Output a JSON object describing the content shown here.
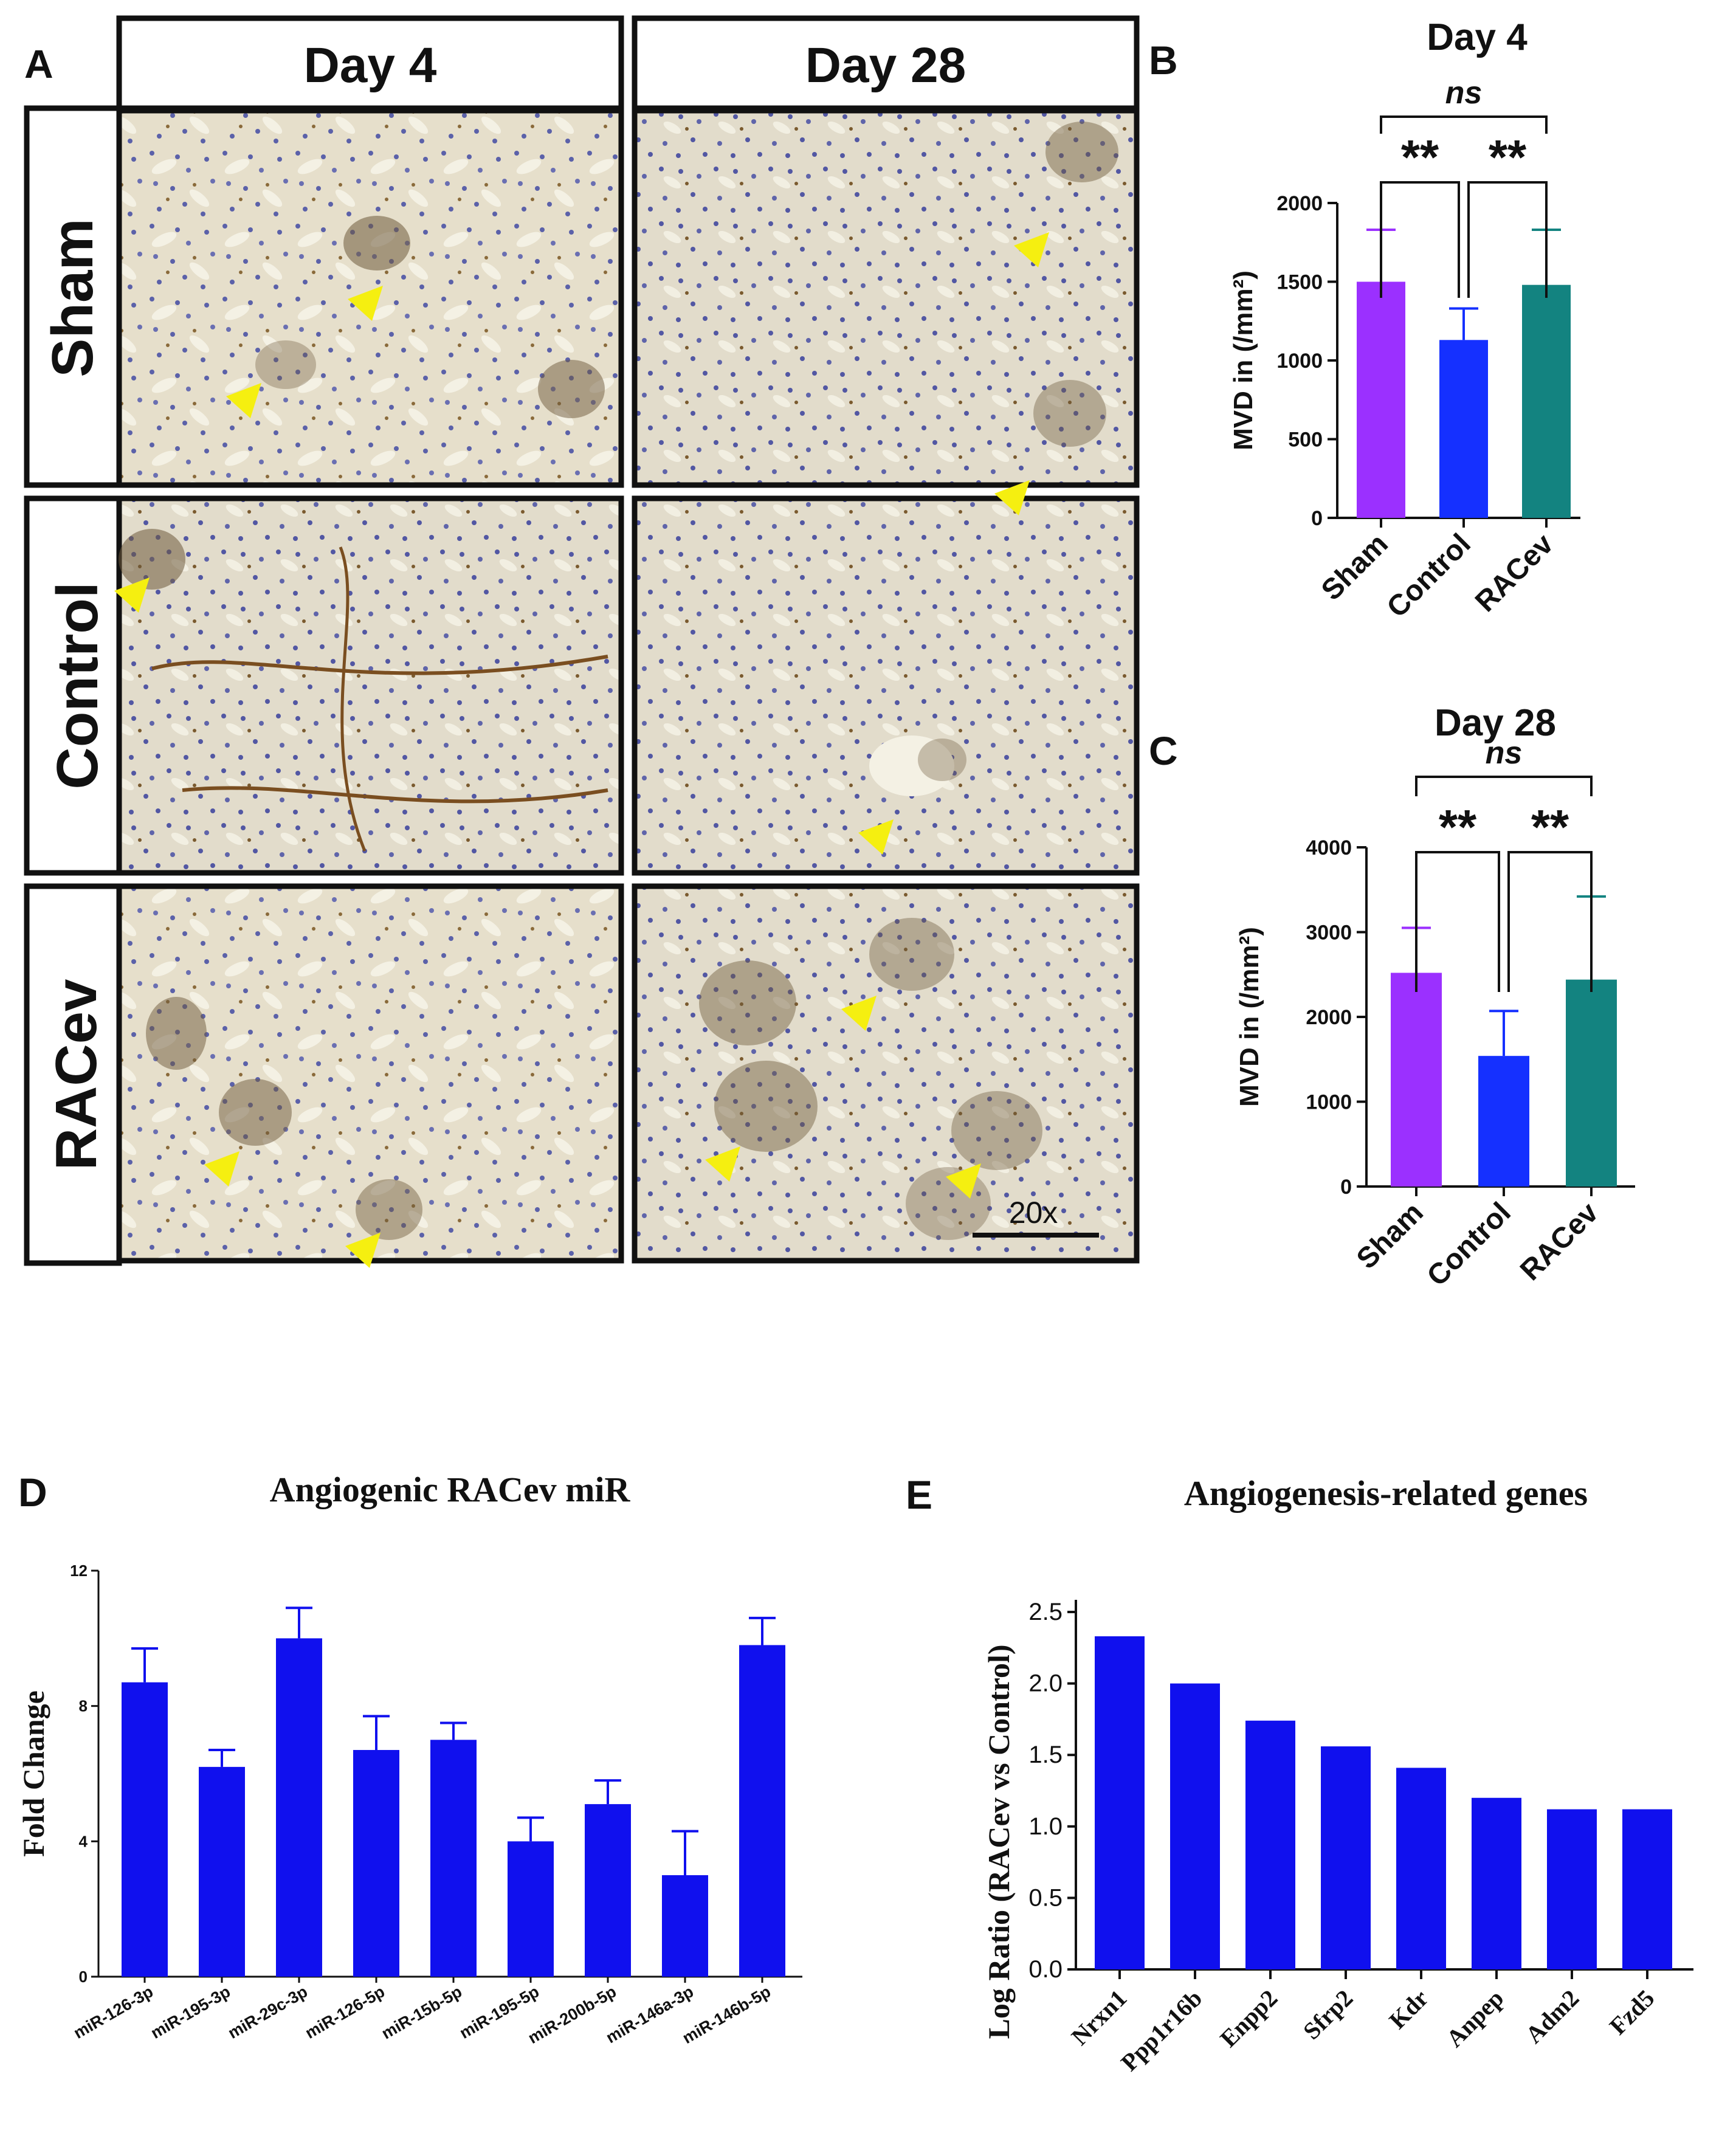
{
  "panel_a": {
    "letter": "A",
    "col_headers": [
      "Day 4",
      "Day 28"
    ],
    "row_labels": [
      "Sham",
      "Control",
      "RACev"
    ],
    "scale_label": "20x",
    "tissue_color": "#e9e2cf",
    "nuclei_color": "#5a5fa8",
    "arrow_color": "#f5ef10"
  },
  "chart_data": [
    {
      "id": "B",
      "letter": "B",
      "type": "bar",
      "title": "Day 4",
      "ylabel": "MVD in (/mm²)",
      "ylim": [
        0,
        2000
      ],
      "yticks": [
        0,
        500,
        1000,
        1500,
        2000
      ],
      "categories": [
        "Sham",
        "Control",
        "RACev"
      ],
      "values": [
        1500,
        1130,
        1480
      ],
      "errors": [
        330,
        200,
        350
      ],
      "colors": [
        "#9b30ff",
        "#1530ff",
        "#138380"
      ],
      "significance": [
        {
          "from": 0,
          "to": 2,
          "label": "ns"
        },
        {
          "from": 0,
          "to": 1,
          "label": "**"
        },
        {
          "from": 1,
          "to": 2,
          "label": "**"
        }
      ]
    },
    {
      "id": "C",
      "letter": "C",
      "type": "bar",
      "title": "Day 28",
      "ylabel": "MVD in (/mm²)",
      "ylim": [
        0,
        4000
      ],
      "yticks": [
        0,
        1000,
        2000,
        3000,
        4000
      ],
      "categories": [
        "Sham",
        "Control",
        "RACev"
      ],
      "values": [
        2520,
        1540,
        2440
      ],
      "errors": [
        530,
        530,
        980
      ],
      "colors": [
        "#9b30ff",
        "#1530ff",
        "#138380"
      ],
      "significance": [
        {
          "from": 0,
          "to": 2,
          "label": "ns"
        },
        {
          "from": 0,
          "to": 1,
          "label": "**"
        },
        {
          "from": 1,
          "to": 2,
          "label": "**"
        }
      ]
    },
    {
      "id": "D",
      "letter": "D",
      "type": "bar",
      "title": "Angiogenic RACev miR",
      "ylabel": "Fold Change",
      "ylim": [
        0,
        12
      ],
      "yticks": [
        0,
        4,
        8,
        12
      ],
      "categories": [
        "miR-126-3p",
        "miR-195-3p",
        "miR-29c-3p",
        "miR-126-5p",
        "miR-15b-5p",
        "miR-195-5p",
        "miR-200b-5p",
        "miR-146a-3p",
        "miR-146b-5p"
      ],
      "values": [
        8.7,
        6.2,
        10.0,
        6.7,
        7.0,
        4.0,
        5.1,
        3.0,
        9.8
      ],
      "errors": [
        1.0,
        0.5,
        0.9,
        1.0,
        0.5,
        0.7,
        0.7,
        1.3,
        0.8
      ],
      "color": "#1010ee"
    },
    {
      "id": "E",
      "letter": "E",
      "type": "bar",
      "title": "Angiogenesis-related genes",
      "ylabel": "Log Ratio (RACev vs Control)",
      "ylim": [
        0,
        2.5
      ],
      "yticks": [
        "0.0",
        "0.5",
        "1.0",
        "1.5",
        "2.0",
        "2.5"
      ],
      "categories": [
        "Nrxn1",
        "Ppp1r16b",
        "Enpp2",
        "Sfrp2",
        "Kdr",
        "Anpep",
        "Adm2",
        "Fzd5"
      ],
      "values": [
        2.33,
        2.0,
        1.74,
        1.56,
        1.41,
        1.2,
        1.12,
        1.12
      ],
      "color": "#1010ee"
    }
  ]
}
